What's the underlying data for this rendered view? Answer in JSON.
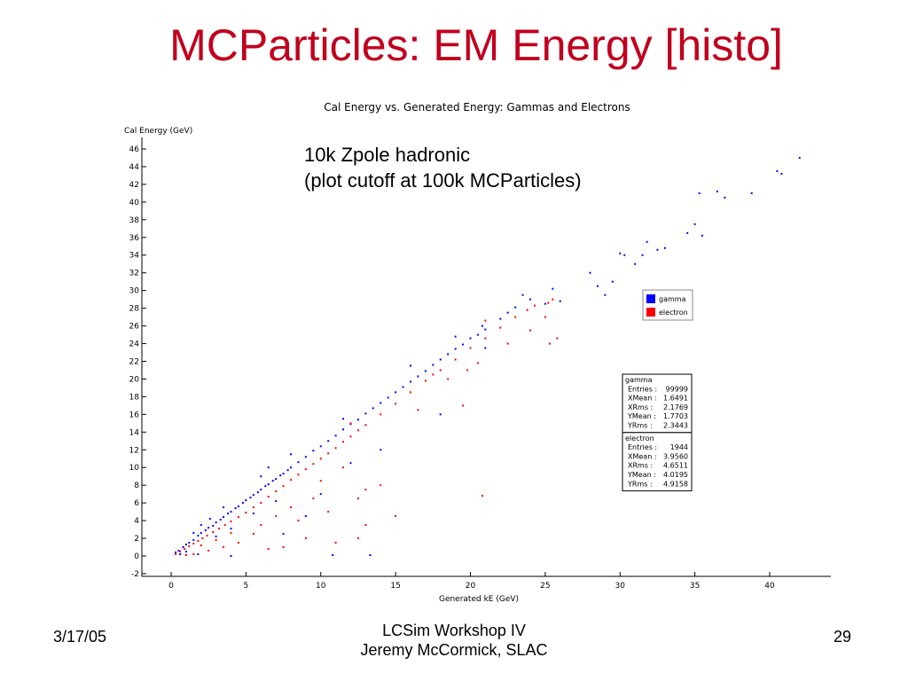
{
  "slide": {
    "title": "MCParticles: EM Energy [histo]",
    "annotation_line1": "10k Zpole hadronic",
    "annotation_line2": "(plot cutoff at 100k MCParticles)",
    "footer_date": "3/17/05",
    "footer_line1": "LCSim Workshop IV",
    "footer_line2": "Jeremy McCormick, SLAC",
    "page_number": "29"
  },
  "chart_data": {
    "type": "scatter",
    "title": "Cal Energy vs. Generated Energy: Gammas and Electrons",
    "xlabel": "Generated kE (GeV)",
    "ylabel": "Cal Energy (GeV)",
    "xlim": [
      -2,
      44
    ],
    "ylim": [
      -2,
      46
    ],
    "x_ticks": [
      0,
      5,
      10,
      15,
      20,
      25,
      30,
      35,
      40
    ],
    "y_ticks": [
      -2,
      0,
      2,
      4,
      6,
      8,
      10,
      12,
      14,
      16,
      18,
      20,
      22,
      24,
      26,
      28,
      30,
      32,
      34,
      36,
      38,
      40,
      42,
      44,
      46
    ],
    "grid": false,
    "legend_position": "right",
    "series": [
      {
        "name": "gamma",
        "color": "#0000ff",
        "points": [
          [
            0.3,
            0.4
          ],
          [
            0.5,
            0.6
          ],
          [
            0.8,
            1.0
          ],
          [
            1.0,
            1.3
          ],
          [
            1.2,
            1.5
          ],
          [
            1.5,
            1.8
          ],
          [
            1.8,
            2.3
          ],
          [
            2.0,
            2.6
          ],
          [
            2.3,
            2.9
          ],
          [
            2.5,
            3.2
          ],
          [
            2.8,
            3.4
          ],
          [
            3.0,
            3.8
          ],
          [
            3.3,
            4.1
          ],
          [
            3.5,
            4.4
          ],
          [
            3.8,
            4.8
          ],
          [
            4.0,
            5.0
          ],
          [
            4.3,
            5.4
          ],
          [
            4.5,
            5.6
          ],
          [
            4.8,
            6.0
          ],
          [
            5.0,
            6.3
          ],
          [
            5.3,
            6.6
          ],
          [
            5.5,
            6.9
          ],
          [
            5.8,
            7.2
          ],
          [
            6.0,
            7.5
          ],
          [
            6.3,
            7.9
          ],
          [
            6.5,
            8.1
          ],
          [
            6.8,
            8.5
          ],
          [
            7.0,
            8.7
          ],
          [
            7.3,
            9.1
          ],
          [
            7.5,
            9.3
          ],
          [
            7.8,
            9.7
          ],
          [
            8.0,
            10.0
          ],
          [
            8.5,
            10.6
          ],
          [
            9.0,
            11.2
          ],
          [
            9.5,
            11.9
          ],
          [
            10.0,
            12.4
          ],
          [
            10.5,
            13.0
          ],
          [
            11.0,
            13.6
          ],
          [
            11.5,
            14.3
          ],
          [
            12.0,
            14.9
          ],
          [
            12.5,
            15.4
          ],
          [
            13.0,
            16.1
          ],
          [
            13.5,
            16.7
          ],
          [
            14.0,
            17.3
          ],
          [
            14.5,
            17.9
          ],
          [
            15.0,
            18.5
          ],
          [
            15.5,
            19.1
          ],
          [
            16.0,
            19.7
          ],
          [
            16.5,
            20.3
          ],
          [
            17.0,
            20.9
          ],
          [
            17.5,
            21.6
          ],
          [
            18.0,
            22.2
          ],
          [
            18.5,
            22.8
          ],
          [
            19.0,
            23.4
          ],
          [
            19.5,
            23.9
          ],
          [
            20.0,
            24.6
          ],
          [
            20.5,
            25.0
          ],
          [
            21.0,
            25.6
          ],
          [
            22.0,
            26.8
          ],
          [
            23.0,
            28.1
          ],
          [
            24.0,
            29.0
          ],
          [
            25.0,
            28.5
          ],
          [
            25.5,
            30.2
          ],
          [
            26.0,
            28.8
          ],
          [
            28.0,
            32.0
          ],
          [
            28.5,
            30.5
          ],
          [
            29.0,
            29.5
          ],
          [
            29.5,
            31.0
          ],
          [
            30.0,
            34.2
          ],
          [
            30.3,
            34.0
          ],
          [
            31.0,
            33.0
          ],
          [
            31.5,
            34.0
          ],
          [
            31.8,
            35.5
          ],
          [
            32.5,
            34.6
          ],
          [
            33.0,
            34.8
          ],
          [
            34.5,
            36.5
          ],
          [
            35.0,
            37.5
          ],
          [
            35.5,
            36.2
          ],
          [
            35.3,
            41.0
          ],
          [
            36.5,
            41.2
          ],
          [
            37.0,
            40.5
          ],
          [
            38.8,
            41.0
          ],
          [
            40.5,
            43.5
          ],
          [
            40.8,
            43.2
          ],
          [
            42.0,
            45.0
          ],
          [
            3.0,
            2.2
          ],
          [
            4.0,
            3.1
          ],
          [
            5.5,
            4.8
          ],
          [
            7.0,
            6.2
          ],
          [
            2.0,
            3.5
          ],
          [
            3.5,
            5.5
          ],
          [
            6.0,
            9.0
          ],
          [
            8.0,
            11.5
          ],
          [
            10.0,
            7.0
          ],
          [
            12.0,
            10.5
          ],
          [
            14.0,
            12.0
          ],
          [
            10.8,
            0.1
          ],
          [
            13.3,
            0.1
          ],
          [
            4.0,
            0.0
          ],
          [
            1.8,
            0.2
          ],
          [
            7.5,
            2.5
          ],
          [
            9.0,
            4.5
          ],
          [
            18.0,
            16.0
          ],
          [
            21.0,
            23.5
          ],
          [
            16.0,
            21.5
          ],
          [
            11.5,
            15.5
          ],
          [
            6.5,
            10.0
          ],
          [
            19.0,
            24.8
          ],
          [
            22.5,
            27.5
          ],
          [
            23.5,
            29.5
          ],
          [
            20.8,
            26.0
          ],
          [
            1.0,
            0.5
          ],
          [
            0.6,
            0.2
          ],
          [
            1.5,
            2.6
          ],
          [
            2.6,
            4.2
          ]
        ]
      },
      {
        "name": "electron",
        "color": "#ff0000",
        "points": [
          [
            0.3,
            0.2
          ],
          [
            0.6,
            0.5
          ],
          [
            0.9,
            0.8
          ],
          [
            1.2,
            1.1
          ],
          [
            1.5,
            1.4
          ],
          [
            1.8,
            1.7
          ],
          [
            2.1,
            2.0
          ],
          [
            2.4,
            2.3
          ],
          [
            2.8,
            2.7
          ],
          [
            3.2,
            3.1
          ],
          [
            3.6,
            3.5
          ],
          [
            4.0,
            3.9
          ],
          [
            4.5,
            4.4
          ],
          [
            5.0,
            4.9
          ],
          [
            5.5,
            5.5
          ],
          [
            6.0,
            6.0
          ],
          [
            6.5,
            6.7
          ],
          [
            7.0,
            7.3
          ],
          [
            7.5,
            7.9
          ],
          [
            8.0,
            8.6
          ],
          [
            8.5,
            9.2
          ],
          [
            9.0,
            9.8
          ],
          [
            9.5,
            10.4
          ],
          [
            10.0,
            11.0
          ],
          [
            10.5,
            11.6
          ],
          [
            11.0,
            12.2
          ],
          [
            11.5,
            12.9
          ],
          [
            12.0,
            13.5
          ],
          [
            12.5,
            14.2
          ],
          [
            13.0,
            14.8
          ],
          [
            14.0,
            16.0
          ],
          [
            15.0,
            17.2
          ],
          [
            16.0,
            18.5
          ],
          [
            17.0,
            19.8
          ],
          [
            18.0,
            21.0
          ],
          [
            19.0,
            22.2
          ],
          [
            20.0,
            23.5
          ],
          [
            21.0,
            24.6
          ],
          [
            22.0,
            25.8
          ],
          [
            23.0,
            27.0
          ],
          [
            23.8,
            27.8
          ],
          [
            24.3,
            28.3
          ],
          [
            25.0,
            27.0
          ],
          [
            25.2,
            28.6
          ],
          [
            25.5,
            29.0
          ],
          [
            25.8,
            24.6
          ],
          [
            25.3,
            24.0
          ],
          [
            21.0,
            26.6
          ],
          [
            20.5,
            21.8
          ],
          [
            19.5,
            17.0
          ],
          [
            14.0,
            8.0
          ],
          [
            15.0,
            4.5
          ],
          [
            20.8,
            6.8
          ],
          [
            13.0,
            3.5
          ],
          [
            12.5,
            2.0
          ],
          [
            11.0,
            1.5
          ],
          [
            9.0,
            2.0
          ],
          [
            8.0,
            5.5
          ],
          [
            9.5,
            6.5
          ],
          [
            10.5,
            5.0
          ],
          [
            12.5,
            6.5
          ],
          [
            13.0,
            7.5
          ],
          [
            7.5,
            1.0
          ],
          [
            6.5,
            0.8
          ],
          [
            5.5,
            2.5
          ],
          [
            4.5,
            1.5
          ],
          [
            3.5,
            1.0
          ],
          [
            2.5,
            0.6
          ],
          [
            1.5,
            0.2
          ],
          [
            1.0,
            0.1
          ],
          [
            8.5,
            4.0
          ],
          [
            10.0,
            8.5
          ],
          [
            11.5,
            10.0
          ],
          [
            12.0,
            15.0
          ],
          [
            16.5,
            16.5
          ],
          [
            17.5,
            20.5
          ],
          [
            18.5,
            20.0
          ],
          [
            19.8,
            21.0
          ],
          [
            22.5,
            24.0
          ],
          [
            24.0,
            25.5
          ],
          [
            6.0,
            3.5
          ],
          [
            7.0,
            4.5
          ],
          [
            3.0,
            1.8
          ],
          [
            4.0,
            2.6
          ],
          [
            2.0,
            1.2
          ]
        ]
      }
    ],
    "stats": [
      {
        "name": "gamma",
        "rows": [
          {
            "label": "Entries",
            "value": "99999"
          },
          {
            "label": "XMean",
            "value": "1.6491"
          },
          {
            "label": "XRms",
            "value": "2.1769"
          },
          {
            "label": "YMean",
            "value": "1.7703"
          },
          {
            "label": "YRms",
            "value": "2.3443"
          }
        ]
      },
      {
        "name": "electron",
        "rows": [
          {
            "label": "Entries",
            "value": "1944"
          },
          {
            "label": "XMean",
            "value": "3.9560"
          },
          {
            "label": "XRms",
            "value": "4.6511"
          },
          {
            "label": "YMean",
            "value": "4.0195"
          },
          {
            "label": "YRms",
            "value": "4.9158"
          }
        ]
      }
    ]
  }
}
